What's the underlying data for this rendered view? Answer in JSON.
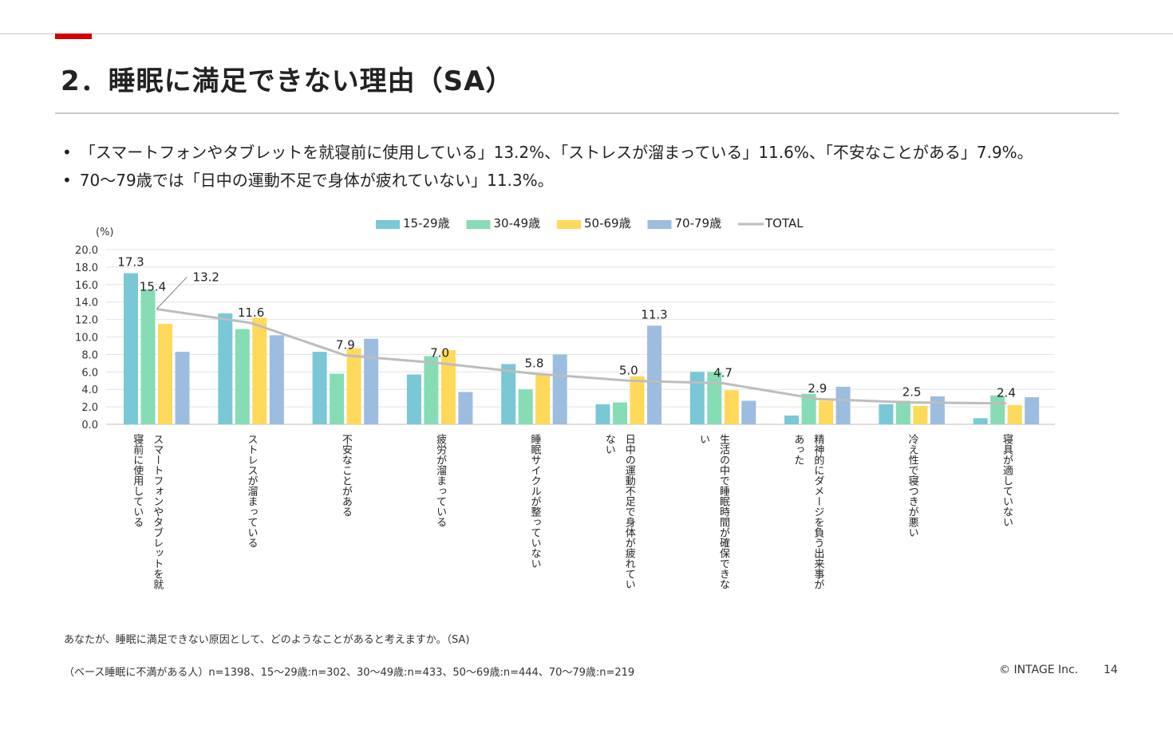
{
  "header": {
    "title": "2．睡眠に満足できない理由（SA）"
  },
  "summary": {
    "bullets": [
      "「スマートフォンやタブレットを就寝前に使用している」13.2%、「ストレスが溜まっている」11.6%、「不安なことがある」7.9%。",
      "70～79歳では「日中の運動不足で身体が疲れていない」11.3%。"
    ]
  },
  "chart_data": {
    "type": "bar",
    "unit_label": "(%)",
    "ylim": [
      0,
      20
    ],
    "yticks": [
      "0.0",
      "2.0",
      "4.0",
      "6.0",
      "8.0",
      "10.0",
      "12.0",
      "14.0",
      "16.0",
      "18.0",
      "20.0"
    ],
    "grid": true,
    "legend_position": "top",
    "categories": [
      [
        "スマートフォンやタブレットを就",
        "寝前に使用している"
      ],
      [
        "ストレスが溜まっている"
      ],
      [
        "不安なことがある"
      ],
      [
        "疲労が溜まっている"
      ],
      [
        "睡眠サイクルが整っていない"
      ],
      [
        "日中の運動不足で身体が疲れてい",
        "ない"
      ],
      [
        "生活の中で睡眠時間が確保できな",
        "い"
      ],
      [
        "精神的にダメージを負う出来事が",
        "あった"
      ],
      [
        "冷え性で寝つきが悪い"
      ],
      [
        "寝具が適していない"
      ]
    ],
    "series": [
      {
        "name": "15-29歳",
        "color": "#7ac7d6",
        "values": [
          17.3,
          12.7,
          8.3,
          5.7,
          6.9,
          2.3,
          6.0,
          1.0,
          2.3,
          0.7
        ]
      },
      {
        "name": "30-49歳",
        "color": "#86dcb5",
        "values": [
          15.4,
          10.9,
          5.8,
          7.8,
          4.0,
          2.5,
          6.0,
          3.5,
          2.7,
          3.3
        ]
      },
      {
        "name": "50-69歳",
        "color": "#fed95a",
        "values": [
          11.5,
          12.2,
          8.7,
          8.5,
          5.7,
          5.5,
          3.9,
          2.7,
          2.1,
          2.2
        ]
      },
      {
        "name": "70-79歳",
        "color": "#9dbde0",
        "values": [
          8.3,
          10.2,
          9.8,
          3.7,
          8.0,
          11.3,
          2.7,
          4.3,
          3.2,
          3.1
        ]
      },
      {
        "name": "TOTAL",
        "color": "#bdbdbd",
        "type": "line",
        "values": [
          13.2,
          11.6,
          7.9,
          7.0,
          5.8,
          5.0,
          4.7,
          2.9,
          2.5,
          2.4
        ]
      }
    ],
    "data_labels": [
      {
        "series": "15-29歳",
        "index": 0,
        "text": "17.3"
      },
      {
        "series": "30-49歳",
        "index": 0,
        "text": "15.4"
      },
      {
        "series": "TOTAL",
        "index": 0,
        "text": "13.2"
      },
      {
        "series": "TOTAL",
        "index": 1,
        "text": "11.6"
      },
      {
        "series": "TOTAL",
        "index": 2,
        "text": "7.9"
      },
      {
        "series": "TOTAL",
        "index": 3,
        "text": "7.0"
      },
      {
        "series": "TOTAL",
        "index": 4,
        "text": "5.8"
      },
      {
        "series": "TOTAL",
        "index": 5,
        "text": "5.0"
      },
      {
        "series": "70-79歳",
        "index": 5,
        "text": "11.3"
      },
      {
        "series": "TOTAL",
        "index": 6,
        "text": "4.7"
      },
      {
        "series": "TOTAL",
        "index": 7,
        "text": "2.9"
      },
      {
        "series": "TOTAL",
        "index": 8,
        "text": "2.5"
      },
      {
        "series": "TOTAL",
        "index": 9,
        "text": "2.4"
      }
    ]
  },
  "footer": {
    "question": "あなたが、睡眠に満足できない原因として、どのようなことがあると考えますか。（SA)",
    "base": "（ベース睡眠に不満がある人）n=1398、15～29歳:n=302、30～49歳:n=433、50～69歳:n=444、70～79歳:n=219",
    "copyright": "© INTAGE Inc.",
    "page_number": "14"
  }
}
